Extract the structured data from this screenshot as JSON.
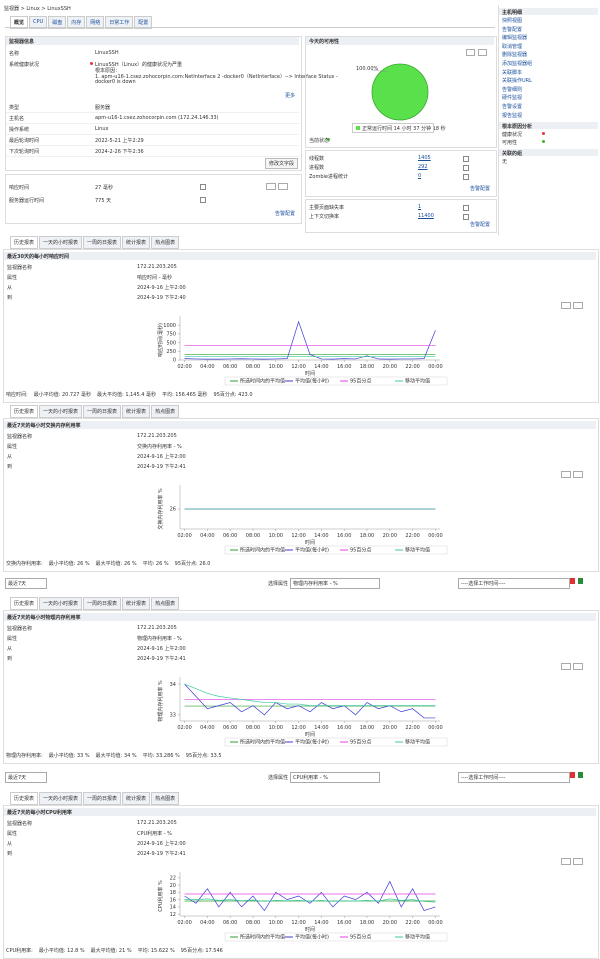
{
  "breadcrumb": "监视器 > Linux > LinuxSSH",
  "tabs": [
    "概览",
    "CPU",
    "磁盘",
    "内存",
    "网络",
    "日常工作",
    "配置"
  ],
  "monitor_info": {
    "title": "监视器信息",
    "rows": [
      {
        "label": "名称",
        "lines": [
          "LinuxSSH"
        ]
      },
      {
        "label": "系统健康状况",
        "lines": [
          "LinuxSSH（Linux）的健康状况为严重",
          "根本原因：",
          "1. apm-u16-1.csez.zohocorpin.com:NetInterface 2 -docker0（NetInterface）--> Interface Status -",
          "docker0 is down"
        ]
      },
      {
        "label": "类型",
        "lines": [
          "服务器"
        ]
      },
      {
        "label": "主机名",
        "lines": [
          "apm-u16-1.csez.zohocorpin.com (172.24.146.33)"
        ]
      },
      {
        "label": "操作系统",
        "lines": [
          "Linux"
        ]
      },
      {
        "label": "最后轮询时间",
        "lines": [
          "2022-5-21 上午2:29"
        ]
      },
      {
        "label": "下次轮询时间",
        "lines": [
          "2024-2-26 下午2:36"
        ]
      }
    ],
    "more": "更多",
    "edit_button": "修改文字段"
  },
  "response": {
    "rows": [
      [
        "响应时间",
        "27 毫秒"
      ],
      [
        "服务器运行时间",
        "775 天"
      ]
    ],
    "alert_link": "告警配置"
  },
  "current_status": "当前状态",
  "stats": [
    {
      "rows": [
        [
          "线程数",
          "1405"
        ],
        [
          "进程数",
          "292"
        ],
        [
          "Zombie进程统计",
          "0"
        ]
      ],
      "alert_link": "告警配置"
    },
    {
      "rows": [
        [
          "主要页面缺失率",
          "1"
        ],
        [
          "上下文切换率",
          "11400"
        ]
      ],
      "alert_link": "告警配置"
    }
  ],
  "sidebar": {
    "host_details": {
      "title": "主机明细",
      "items": [
        "快照视图",
        "告警配置",
        "编辑监视器",
        "取消管理",
        "删除监视器",
        "添加监视器组",
        "关联脚本",
        "关联操作URL",
        "告警细则",
        "硬件监视",
        "告警设置",
        "报告监视"
      ]
    },
    "root_cause": {
      "title": "根本原因分析",
      "items": [
        {
          "label": "健康状况",
          "color": "#e53935"
        },
        {
          "label": "可用性",
          "color": "#43b02a"
        }
      ]
    },
    "groups": {
      "title": "关联的组",
      "items": [
        "无"
      ]
    }
  },
  "report_tabs": [
    "历史报表",
    "一天的小时报表",
    "一周的日报表",
    "统计报表",
    "热点图表"
  ],
  "controls": [
    {
      "period": "最近7天",
      "attr_label": "选择属性",
      "attr_value": "物理内存利用率 - %",
      "worktime": "----选择工作时间----"
    },
    {
      "period": "最近7天",
      "attr_label": "选择属性",
      "attr_value": "CPU利用率 - %",
      "worktime": "----选择工作时间----"
    }
  ],
  "reports": [
    {
      "info": [
        [
          "监视器名称",
          "172.21.203.205"
        ],
        [
          "属性",
          "响应时间 - 毫秒"
        ],
        [
          "从",
          "2024-9-16 上午2:00"
        ],
        [
          "到",
          "2024-9-19 下午2:40"
        ]
      ],
      "summary": [
        "响应时间:",
        "最小平均值: 20.727 毫秒",
        "最大平均值: 1,145.4 毫秒",
        "平均: 156.465 毫秒",
        "95百分点: 423.0"
      ]
    },
    {
      "info": [
        [
          "监视器名称",
          "172.21.203.205"
        ],
        [
          "属性",
          "交换内存利用率 - %"
        ],
        [
          "从",
          "2024-9-16 上午2:00"
        ],
        [
          "到",
          "2024-9-19 下午2:41"
        ]
      ],
      "summary": [
        "交换内存利用率:",
        "最小平均值: 26 %",
        "最大平均值: 26 %",
        "平均: 26 %",
        "95百分点: 26.0"
      ]
    },
    {
      "info": [
        [
          "监视器名称",
          "172.21.203.205"
        ],
        [
          "属性",
          "物理内存利用率 - %"
        ],
        [
          "从",
          "2024-9-16 上午2:00"
        ],
        [
          "到",
          "2024-9-19 下午2:41"
        ]
      ],
      "summary": [
        "物理内存利用率:",
        "最小平均值: 33 %",
        "最大平均值: 34 %",
        "平均: 33.286 %",
        "95百分点: 33.5"
      ]
    },
    {
      "info": [
        [
          "监视器名称",
          "172.21.203.205"
        ],
        [
          "属性",
          "CPU利用率 - %"
        ],
        [
          "从",
          "2024-9-16 上午2:00"
        ],
        [
          "到",
          "2024-9-19 下午2:41"
        ]
      ],
      "summary": [
        "CPU利用率:",
        "最小平均值: 12.8 %",
        "最大平均值: 21 %",
        "平均: 15.622 %",
        "95百分点: 17.546"
      ]
    }
  ],
  "chart_data": [
    {
      "type": "pie",
      "title": "今天的可用性",
      "categories": [
        "正常运行时间 14 小时 37 分钟 18 秒"
      ],
      "values": [
        100
      ],
      "value_labels": [
        "100.00%"
      ],
      "colors": [
        "#5ae04a"
      ]
    },
    {
      "type": "line",
      "title": "最近30天的每小时响应时间",
      "y_label": "响应时间(毫秒)",
      "x_label": "时间",
      "x": [
        2,
        3,
        4,
        5,
        6,
        7,
        8,
        9,
        10,
        11,
        12,
        13,
        14,
        15,
        16,
        17,
        18,
        19,
        20,
        21,
        22,
        23,
        24
      ],
      "xlim": [
        1.6,
        24.4
      ],
      "xticks": [
        {
          "value": 2,
          "label": "02:00"
        },
        {
          "value": 4,
          "label": "04:00"
        },
        {
          "value": 6,
          "label": "06:00"
        },
        {
          "value": 8,
          "label": "08:00"
        },
        {
          "value": 10,
          "label": "10:00"
        },
        {
          "value": 12,
          "label": "12:00"
        },
        {
          "value": 14,
          "label": "14:00"
        },
        {
          "value": 16,
          "label": "16:00"
        },
        {
          "value": 18,
          "label": "18:00"
        },
        {
          "value": 20,
          "label": "20:00"
        },
        {
          "value": 22,
          "label": "22:00"
        },
        {
          "value": 24,
          "label": "00:00"
        }
      ],
      "ylim": [
        0,
        1150
      ],
      "yticks": [
        0,
        250,
        500,
        750,
        1000
      ],
      "series": [
        {
          "name": "所选时间内的平均值",
          "color": "#2ca02c",
          "values": [
            156.465,
            156.465,
            156.465,
            156.465,
            156.465,
            156.465,
            156.465,
            156.465,
            156.465,
            156.465,
            156.465,
            156.465,
            156.465,
            156.465,
            156.465,
            156.465,
            156.465,
            156.465,
            156.465,
            156.465,
            156.465,
            156.465,
            156.465
          ]
        },
        {
          "name": "平均值(每小时)",
          "color": "#3b3bd6",
          "values": [
            40,
            30,
            25,
            25,
            30,
            35,
            30,
            25,
            30,
            40,
            1100,
            160,
            30,
            25,
            40,
            30,
            120,
            30,
            25,
            30,
            30,
            40,
            850
          ]
        },
        {
          "name": "95百分点",
          "color": "#e040e0",
          "values": [
            423,
            423,
            423,
            423,
            423,
            423,
            423,
            423,
            423,
            423,
            423,
            423,
            423,
            423,
            423,
            423,
            423,
            423,
            423,
            423,
            423,
            423,
            423
          ]
        },
        {
          "name": "移动平均值",
          "color": "#3cc8a0",
          "values": [
            95,
            95,
            95,
            95,
            95,
            95,
            95,
            95,
            95,
            95,
            95,
            95,
            95,
            95,
            95,
            95,
            95,
            95,
            95,
            95,
            95,
            95,
            95
          ]
        }
      ]
    },
    {
      "type": "line",
      "title": "最近7天的每小时交换内存利用率",
      "y_label": "交换内存利用率 %",
      "x_label": "时间",
      "x": [
        2,
        3,
        4,
        5,
        6,
        7,
        8,
        9,
        10,
        11,
        12,
        13,
        14,
        15,
        16,
        17,
        18,
        19,
        20,
        21,
        22,
        23,
        24
      ],
      "xlim": [
        1.6,
        24.4
      ],
      "xticks": [
        {
          "value": 2,
          "label": "02:00"
        },
        {
          "value": 4,
          "label": "04:00"
        },
        {
          "value": 6,
          "label": "06:00"
        },
        {
          "value": 8,
          "label": "08:00"
        },
        {
          "value": 10,
          "label": "10:00"
        },
        {
          "value": 12,
          "label": "12:00"
        },
        {
          "value": 14,
          "label": "14:00"
        },
        {
          "value": 16,
          "label": "16:00"
        },
        {
          "value": 18,
          "label": "18:00"
        },
        {
          "value": 20,
          "label": "20:00"
        },
        {
          "value": 22,
          "label": "22:00"
        },
        {
          "value": 24,
          "label": "00:00"
        }
      ],
      "ylim": [
        25,
        27
      ],
      "yticks": [
        26
      ],
      "series": [
        {
          "name": "所选时间内的平均值",
          "color": "#2ca02c",
          "values": [
            26,
            26,
            26,
            26,
            26,
            26,
            26,
            26,
            26,
            26,
            26,
            26,
            26,
            26,
            26,
            26,
            26,
            26,
            26,
            26,
            26,
            26,
            26
          ]
        },
        {
          "name": "平均值(每小时)",
          "color": "#3b3bd6",
          "values": [
            26,
            26,
            26,
            26,
            26,
            26,
            26,
            26,
            26,
            26,
            26,
            26,
            26,
            26,
            26,
            26,
            26,
            26,
            26,
            26,
            26,
            26,
            26
          ]
        },
        {
          "name": "95百分点",
          "color": "#e040e0",
          "values": [
            26,
            26,
            26,
            26,
            26,
            26,
            26,
            26,
            26,
            26,
            26,
            26,
            26,
            26,
            26,
            26,
            26,
            26,
            26,
            26,
            26,
            26,
            26
          ]
        },
        {
          "name": "移动平均值",
          "color": "#3cc8a0",
          "values": [
            26,
            26,
            26,
            26,
            26,
            26,
            26,
            26,
            26,
            26,
            26,
            26,
            26,
            26,
            26,
            26,
            26,
            26,
            26,
            26,
            26,
            26,
            26
          ]
        }
      ]
    },
    {
      "type": "line",
      "title": "最近7天的每小时物理内存利用率",
      "y_label": "物理内存利用率 %",
      "x_label": "时间",
      "x": [
        2,
        3,
        4,
        5,
        6,
        7,
        8,
        9,
        10,
        11,
        12,
        13,
        14,
        15,
        16,
        17,
        18,
        19,
        20,
        21,
        22,
        23,
        24
      ],
      "xlim": [
        1.6,
        24.4
      ],
      "xticks": [
        {
          "value": 2,
          "label": "02:00"
        },
        {
          "value": 4,
          "label": "04:00"
        },
        {
          "value": 6,
          "label": "06:00"
        },
        {
          "value": 8,
          "label": "08:00"
        },
        {
          "value": 10,
          "label": "10:00"
        },
        {
          "value": 12,
          "label": "12:00"
        },
        {
          "value": 14,
          "label": "14:00"
        },
        {
          "value": 16,
          "label": "16:00"
        },
        {
          "value": 18,
          "label": "18:00"
        },
        {
          "value": 20,
          "label": "20:00"
        },
        {
          "value": 22,
          "label": "22:00"
        },
        {
          "value": 24,
          "label": "00:00"
        }
      ],
      "ylim": [
        32.8,
        34.1
      ],
      "yticks": [
        33,
        34
      ],
      "series": [
        {
          "name": "所选时间内的平均值",
          "color": "#2ca02c",
          "values": [
            33.286,
            33.286,
            33.286,
            33.286,
            33.286,
            33.286,
            33.286,
            33.286,
            33.286,
            33.286,
            33.286,
            33.286,
            33.286,
            33.286,
            33.286,
            33.286,
            33.286,
            33.286,
            33.286,
            33.286,
            33.286,
            33.286,
            33.286
          ]
        },
        {
          "name": "平均值(每小时)",
          "color": "#3b3bd6",
          "values": [
            34,
            33.6,
            33.2,
            33.3,
            33.4,
            33.1,
            33.3,
            33.0,
            33.4,
            33.2,
            33.3,
            33.1,
            33.4,
            33.2,
            33.3,
            33.0,
            33.4,
            33.2,
            33.3,
            33.1,
            33.2,
            32.9,
            32.9
          ]
        },
        {
          "name": "95百分点",
          "color": "#e040e0",
          "values": [
            33.5,
            33.5,
            33.5,
            33.5,
            33.5,
            33.5,
            33.5,
            33.5,
            33.5,
            33.5,
            33.5,
            33.5,
            33.5,
            33.5,
            33.5,
            33.5,
            33.5,
            33.5,
            33.5,
            33.5,
            33.5,
            33.5,
            33.5
          ]
        },
        {
          "name": "移动平均值",
          "color": "#3cc8a0",
          "values": [
            34,
            33.85,
            33.7,
            33.6,
            33.55,
            33.5,
            33.45,
            33.4,
            33.4,
            33.35,
            33.35,
            33.3,
            33.3,
            33.3,
            33.3,
            33.3,
            33.3,
            33.3,
            33.3,
            33.3,
            33.3,
            33.3,
            33.3
          ]
        }
      ]
    },
    {
      "type": "line",
      "title": "最近7天的每小时CPU利用率",
      "y_label": "CPU利用率 %",
      "x_label": "时间",
      "x": [
        2,
        3,
        4,
        5,
        6,
        7,
        8,
        9,
        10,
        11,
        12,
        13,
        14,
        15,
        16,
        17,
        18,
        19,
        20,
        21,
        22,
        23,
        24
      ],
      "xlim": [
        1.6,
        24.4
      ],
      "xticks": [
        {
          "value": 2,
          "label": "02:00"
        },
        {
          "value": 4,
          "label": "04:00"
        },
        {
          "value": 6,
          "label": "06:00"
        },
        {
          "value": 8,
          "label": "08:00"
        },
        {
          "value": 10,
          "label": "10:00"
        },
        {
          "value": 12,
          "label": "12:00"
        },
        {
          "value": 14,
          "label": "14:00"
        },
        {
          "value": 16,
          "label": "16:00"
        },
        {
          "value": 18,
          "label": "18:00"
        },
        {
          "value": 20,
          "label": "20:00"
        },
        {
          "value": 22,
          "label": "22:00"
        },
        {
          "value": 24,
          "label": "00:00"
        }
      ],
      "ylim": [
        11.5,
        22.5
      ],
      "yticks": [
        12,
        14,
        16,
        18,
        20,
        22
      ],
      "series": [
        {
          "name": "所选时间内的平均值",
          "color": "#2ca02c",
          "values": [
            15.622,
            15.622,
            15.622,
            15.622,
            15.622,
            15.622,
            15.622,
            15.622,
            15.622,
            15.622,
            15.622,
            15.622,
            15.622,
            15.622,
            15.622,
            15.622,
            15.622,
            15.622,
            15.622,
            15.622,
            15.622,
            15.622,
            15.622
          ]
        },
        {
          "name": "平均值(每小时)",
          "color": "#3b3bd6",
          "values": [
            17,
            15,
            19,
            14,
            18,
            14,
            17,
            13,
            18,
            16,
            17,
            15,
            18,
            14,
            17,
            16,
            18,
            15,
            21,
            14,
            19,
            13,
            14
          ]
        },
        {
          "name": "95百分点",
          "color": "#e040e0",
          "values": [
            17.546,
            17.546,
            17.546,
            17.546,
            17.546,
            17.546,
            17.546,
            17.546,
            17.546,
            17.546,
            17.546,
            17.546,
            17.546,
            17.546,
            17.546,
            17.546,
            17.546,
            17.546,
            17.546,
            17.546,
            17.546,
            17.546,
            17.546
          ]
        },
        {
          "name": "移动平均值",
          "color": "#3cc8a0",
          "values": [
            16,
            16,
            16.2,
            15.8,
            16,
            15.7,
            15.9,
            15.5,
            15.8,
            15.7,
            15.8,
            15.6,
            15.8,
            15.5,
            15.7,
            15.6,
            15.8,
            15.6,
            16.2,
            15.8,
            16,
            15.5,
            15.3
          ]
        }
      ]
    }
  ]
}
